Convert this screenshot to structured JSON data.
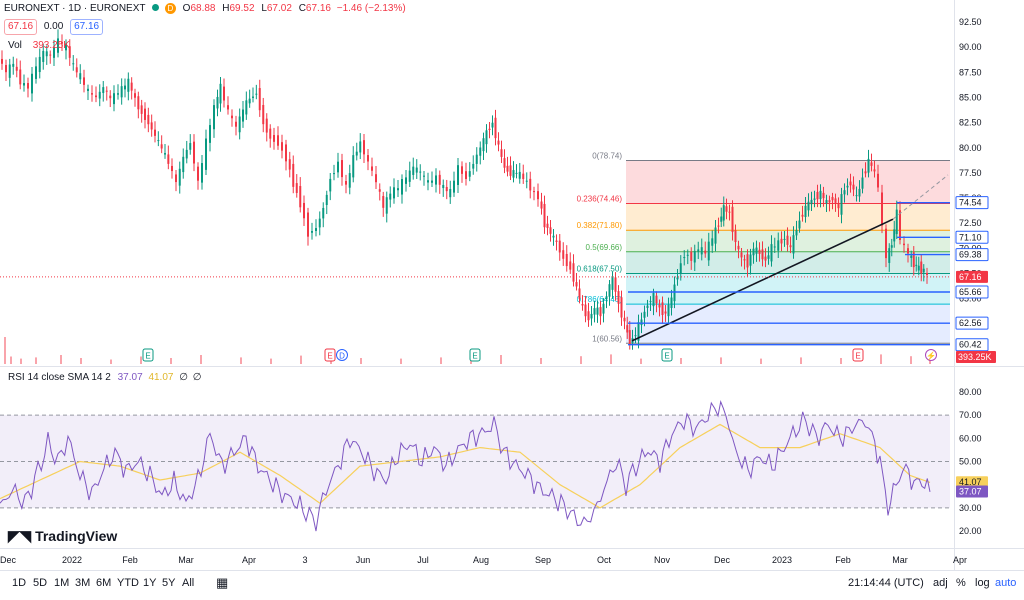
{
  "header": {
    "symbol": "EURONEXT · 1D · EURONEXT",
    "dot_color": "#089981",
    "badge_d": "D",
    "o_label": "O",
    "o_value": "68.88",
    "h_label": "H",
    "h_value": "69.52",
    "l_label": "L",
    "l_value": "67.02",
    "c_label": "C",
    "c_value": "67.16",
    "change": "−1.46 (−2.13%)",
    "bid": "67.16",
    "spread": "0.00",
    "ask": "67.16"
  },
  "volume": {
    "label": "Vol",
    "value": "393.25K",
    "axis_badge": "393.25K"
  },
  "rsi": {
    "label": "RSI 14 close SMA 14 2",
    "rsi_value": "37.07",
    "sma_value": "41.07",
    "na1": "∅",
    "na2": "∅"
  },
  "logo": {
    "text": "TradingView"
  },
  "bottom_bar": {
    "ranges": [
      "1D",
      "5D",
      "1M",
      "3M",
      "6M",
      "YTD",
      "1Y",
      "5Y",
      "All"
    ],
    "calendar_icon": "calendar-icon",
    "clock": "21:14:44 (UTC)",
    "adj": "adj",
    "percent": "%",
    "log": "log",
    "auto": "auto",
    "gear_icon": "gear-icon"
  },
  "chart_data": [
    {
      "type": "candlestick",
      "title": "",
      "ylim": [
        58.5,
        93.5
      ],
      "price_axis_ticks": [
        "92.50",
        "90.00",
        "87.50",
        "85.00",
        "82.50",
        "80.00",
        "77.50",
        "75.00",
        "72.50",
        "70.00",
        "67.50",
        "65.00"
      ],
      "x_axis_ticks": [
        "Dec",
        "2022",
        "Feb",
        "Mar",
        "Apr",
        "3",
        "Jun",
        "Jul",
        "Aug",
        "Sep",
        "Oct",
        "Nov",
        "Dec",
        "2023",
        "Feb",
        "Mar",
        "Apr"
      ],
      "price_path": [
        [
          0,
          89.0
        ],
        [
          8,
          87.5
        ],
        [
          15,
          88.4
        ],
        [
          22,
          86.5
        ],
        [
          30,
          86.0
        ],
        [
          38,
          88.0
        ],
        [
          45,
          89.5
        ],
        [
          52,
          89.2
        ],
        [
          60,
          90.6
        ],
        [
          68,
          90.0
        ],
        [
          75,
          88.0
        ],
        [
          82,
          87.0
        ],
        [
          90,
          85.5
        ],
        [
          98,
          85.0
        ],
        [
          105,
          86.0
        ],
        [
          112,
          84.8
        ],
        [
          120,
          85.5
        ],
        [
          130,
          86.5
        ],
        [
          140,
          84.0
        ],
        [
          150,
          82.5
        ],
        [
          160,
          80.5
        ],
        [
          170,
          78.5
        ],
        [
          178,
          76.5
        ],
        [
          185,
          79.0
        ],
        [
          192,
          80.5
        ],
        [
          200,
          76.5
        ],
        [
          208,
          80.5
        ],
        [
          216,
          84.0
        ],
        [
          222,
          86.0
        ],
        [
          230,
          83.5
        ],
        [
          238,
          82.0
        ],
        [
          248,
          84.5
        ],
        [
          258,
          85.5
        ],
        [
          265,
          82.5
        ],
        [
          272,
          81.0
        ],
        [
          280,
          80.5
        ],
        [
          288,
          79.0
        ],
        [
          295,
          76.5
        ],
        [
          302,
          74.5
        ],
        [
          310,
          71.5
        ],
        [
          318,
          72.0
        ],
        [
          325,
          74.0
        ],
        [
          332,
          77.0
        ],
        [
          340,
          78.5
        ],
        [
          348,
          76.0
        ],
        [
          355,
          79.0
        ],
        [
          362,
          80.5
        ],
        [
          370,
          78.5
        ],
        [
          378,
          76.5
        ],
        [
          385,
          74.0
        ],
        [
          392,
          75.5
        ],
        [
          400,
          76.0
        ],
        [
          408,
          77.0
        ],
        [
          415,
          78.0
        ],
        [
          422,
          77.5
        ],
        [
          430,
          76.5
        ],
        [
          438,
          77.0
        ],
        [
          445,
          76.0
        ],
        [
          452,
          75.5
        ],
        [
          460,
          78.0
        ],
        [
          468,
          77.0
        ],
        [
          475,
          78.5
        ],
        [
          482,
          80.0
        ],
        [
          488,
          81.5
        ],
        [
          494,
          82.5
        ],
        [
          500,
          80.0
        ],
        [
          506,
          78.0
        ],
        [
          512,
          77.5
        ],
        [
          518,
          77.5
        ],
        [
          525,
          77.0
        ],
        [
          532,
          76.0
        ],
        [
          540,
          75.0
        ],
        [
          546,
          72.5
        ],
        [
          552,
          71.5
        ],
        [
          558,
          70.5
        ],
        [
          565,
          69.0
        ],
        [
          572,
          68.0
        ],
        [
          578,
          66.0
        ],
        [
          584,
          64.0
        ],
        [
          590,
          63.0
        ],
        [
          596,
          64.0
        ],
        [
          602,
          63.5
        ],
        [
          608,
          65.5
        ],
        [
          614,
          67.0
        ],
        [
          620,
          64.5
        ],
        [
          626,
          62.5
        ],
        [
          631,
          60.6
        ],
        [
          637,
          61.5
        ],
        [
          643,
          63.0
        ],
        [
          649,
          64.5
        ],
        [
          655,
          65.2
        ],
        [
          661,
          64.0
        ],
        [
          667,
          63.5
        ],
        [
          673,
          65.0
        ],
        [
          679,
          67.5
        ],
        [
          686,
          69.5
        ],
        [
          693,
          69.0
        ],
        [
          700,
          70.0
        ],
        [
          707,
          69.5
        ],
        [
          714,
          71.0
        ],
        [
          720,
          72.5
        ],
        [
          725,
          74.0
        ],
        [
          731,
          73.5
        ],
        [
          737,
          70.5
        ],
        [
          743,
          69.0
        ],
        [
          749,
          68.5
        ],
        [
          755,
          70.0
        ],
        [
          761,
          69.5
        ],
        [
          767,
          68.8
        ],
        [
          773,
          70.0
        ],
        [
          780,
          70.5
        ],
        [
          786,
          71.0
        ],
        [
          792,
          70.0
        ],
        [
          798,
          72.0
        ],
        [
          804,
          73.5
        ],
        [
          810,
          74.5
        ],
        [
          816,
          75.0
        ],
        [
          822,
          75.5
        ],
        [
          828,
          74.5
        ],
        [
          834,
          75.0
        ],
        [
          840,
          74.0
        ],
        [
          846,
          76.0
        ],
        [
          852,
          76.5
        ],
        [
          858,
          75.0
        ],
        [
          864,
          77.0
        ],
        [
          870,
          78.7
        ],
        [
          876,
          77.5
        ],
        [
          880,
          76.0
        ],
        [
          884,
          72.0
        ],
        [
          888,
          69.0
        ],
        [
          893,
          70.5
        ],
        [
          898,
          73.5
        ],
        [
          902,
          71.0
        ],
        [
          906,
          70.0
        ],
        [
          910,
          69.5
        ],
        [
          915,
          68.5
        ],
        [
          920,
          68.0
        ],
        [
          925,
          67.8
        ],
        [
          929,
          67.2
        ]
      ],
      "fibonacci": [
        {
          "label": "0(78.74)",
          "value": 78.74,
          "color": "#787b86"
        },
        {
          "label": "0.236(74.46)",
          "value": 74.46,
          "color": "#f23645"
        },
        {
          "label": "0.382(71.80)",
          "value": 71.8,
          "color": "#ff9800"
        },
        {
          "label": "0.5(69.66)",
          "value": 69.66,
          "color": "#4caf50"
        },
        {
          "label": "0.618(67.50)",
          "value": 67.5,
          "color": "#089981"
        },
        {
          "label": "0.786(64.45)",
          "value": 64.45,
          "color": "#00bcd4"
        },
        {
          "label": "1(60.56)",
          "value": 60.56,
          "color": "#787b86"
        }
      ],
      "horizontal_lines": [
        {
          "label": "74.54",
          "value": 74.54,
          "color": "#2962ff"
        },
        {
          "label": "71.10",
          "value": 71.1,
          "color": "#2962ff"
        },
        {
          "label": "69.38",
          "value": 69.38,
          "color": "#2962ff"
        },
        {
          "label": "65.66",
          "value": 65.66,
          "color": "#2962ff"
        },
        {
          "label": "62.56",
          "value": 62.56,
          "color": "#2962ff"
        },
        {
          "label": "60.42",
          "value": 60.42,
          "color": "#2962ff"
        }
      ],
      "last_price": {
        "label": "67.16",
        "value": 67.16,
        "color": "#f23645"
      },
      "colors": {
        "up": "#089981",
        "down": "#f23645"
      }
    },
    {
      "type": "line",
      "title": "",
      "ylim": [
        17,
        83
      ],
      "y_axis_ticks": [
        "80.00",
        "70.00",
        "60.00",
        "50.00",
        "40.00",
        "30.00",
        "20.00"
      ],
      "bands": {
        "upper": 70,
        "middle": 50,
        "lower": 30
      },
      "series": [
        {
          "name": "RSI",
          "color": "#7e57c2",
          "points": [
            [
              0,
              30
            ],
            [
              12,
              38
            ],
            [
              25,
              32
            ],
            [
              38,
              46
            ],
            [
              48,
              58
            ],
            [
              58,
              50
            ],
            [
              68,
              60
            ],
            [
              80,
              44
            ],
            [
              92,
              36
            ],
            [
              104,
              47
            ],
            [
              115,
              54
            ],
            [
              126,
              46
            ],
            [
              138,
              50
            ],
            [
              150,
              44
            ],
            [
              162,
              35
            ],
            [
              174,
              41
            ],
            [
              186,
              32
            ],
            [
              198,
              42
            ],
            [
              210,
              62
            ],
            [
              222,
              48
            ],
            [
              234,
              54
            ],
            [
              246,
              60
            ],
            [
              258,
              48
            ],
            [
              270,
              42
            ],
            [
              282,
              36
            ],
            [
              294,
              33
            ],
            [
              306,
              28
            ],
            [
              316,
              24
            ],
            [
              326,
              38
            ],
            [
              338,
              48
            ],
            [
              350,
              60
            ],
            [
              362,
              54
            ],
            [
              374,
              46
            ],
            [
              386,
              42
            ],
            [
              398,
              53
            ],
            [
              410,
              58
            ],
            [
              422,
              50
            ],
            [
              434,
              56
            ],
            [
              446,
              48
            ],
            [
              458,
              55
            ],
            [
              470,
              60
            ],
            [
              482,
              62
            ],
            [
              494,
              66
            ],
            [
              504,
              54
            ],
            [
              516,
              48
            ],
            [
              528,
              44
            ],
            [
              540,
              38
            ],
            [
              552,
              35
            ],
            [
              564,
              31
            ],
            [
              574,
              26
            ],
            [
              584,
              23
            ],
            [
              594,
              28
            ],
            [
              604,
              38
            ],
            [
              616,
              50
            ],
            [
              626,
              40
            ],
            [
              636,
              48
            ],
            [
              648,
              55
            ],
            [
              660,
              50
            ],
            [
              672,
              62
            ],
            [
              684,
              68
            ],
            [
              696,
              64
            ],
            [
              708,
              70
            ],
            [
              718,
              74
            ],
            [
              726,
              70
            ],
            [
              736,
              54
            ],
            [
              748,
              46
            ],
            [
              760,
              52
            ],
            [
              772,
              48
            ],
            [
              784,
              56
            ],
            [
              796,
              64
            ],
            [
              806,
              68
            ],
            [
              816,
              60
            ],
            [
              828,
              66
            ],
            [
              840,
              60
            ],
            [
              852,
              64
            ],
            [
              862,
              68
            ],
            [
              872,
              62
            ],
            [
              880,
              50
            ],
            [
              888,
              30
            ],
            [
              896,
              40
            ],
            [
              906,
              48
            ],
            [
              914,
              40
            ],
            [
              922,
              42
            ],
            [
              930,
              37
            ]
          ]
        },
        {
          "name": "SMA",
          "color": "#f7d05b",
          "points": [
            [
              0,
              34
            ],
            [
              40,
              42
            ],
            [
              80,
              50
            ],
            [
              120,
              48
            ],
            [
              160,
              42
            ],
            [
              200,
              45
            ],
            [
              240,
              54
            ],
            [
              280,
              44
            ],
            [
              320,
              32
            ],
            [
              360,
              48
            ],
            [
              400,
              50
            ],
            [
              440,
              52
            ],
            [
              480,
              56
            ],
            [
              520,
              54
            ],
            [
              560,
              40
            ],
            [
              600,
              30
            ],
            [
              640,
              40
            ],
            [
              680,
              56
            ],
            [
              720,
              66
            ],
            [
              760,
              56
            ],
            [
              800,
              56
            ],
            [
              840,
              62
            ],
            [
              880,
              56
            ],
            [
              910,
              44
            ],
            [
              930,
              41
            ]
          ]
        }
      ]
    },
    {
      "type": "bar",
      "title": "",
      "name": "volume",
      "values": [
        [
          4,
          0.9
        ],
        [
          10,
          0.25
        ],
        [
          20,
          0.18
        ],
        [
          35,
          0.22
        ],
        [
          60,
          0.3
        ],
        [
          80,
          0.2
        ],
        [
          110,
          0.15
        ],
        [
          140,
          0.25
        ],
        [
          170,
          0.2
        ],
        [
          200,
          0.3
        ],
        [
          240,
          0.22
        ],
        [
          270,
          0.18
        ],
        [
          300,
          0.28
        ],
        [
          330,
          0.25
        ],
        [
          360,
          0.2
        ],
        [
          400,
          0.18
        ],
        [
          440,
          0.22
        ],
        [
          470,
          0.25
        ],
        [
          500,
          0.3
        ],
        [
          540,
          0.2
        ],
        [
          580,
          0.26
        ],
        [
          610,
          0.32
        ],
        [
          640,
          0.18
        ],
        [
          680,
          0.2
        ],
        [
          720,
          0.22
        ],
        [
          760,
          0.18
        ],
        [
          800,
          0.22
        ],
        [
          840,
          0.2
        ],
        [
          880,
          0.32
        ],
        [
          910,
          0.26
        ],
        [
          929,
          0.12
        ]
      ]
    }
  ]
}
